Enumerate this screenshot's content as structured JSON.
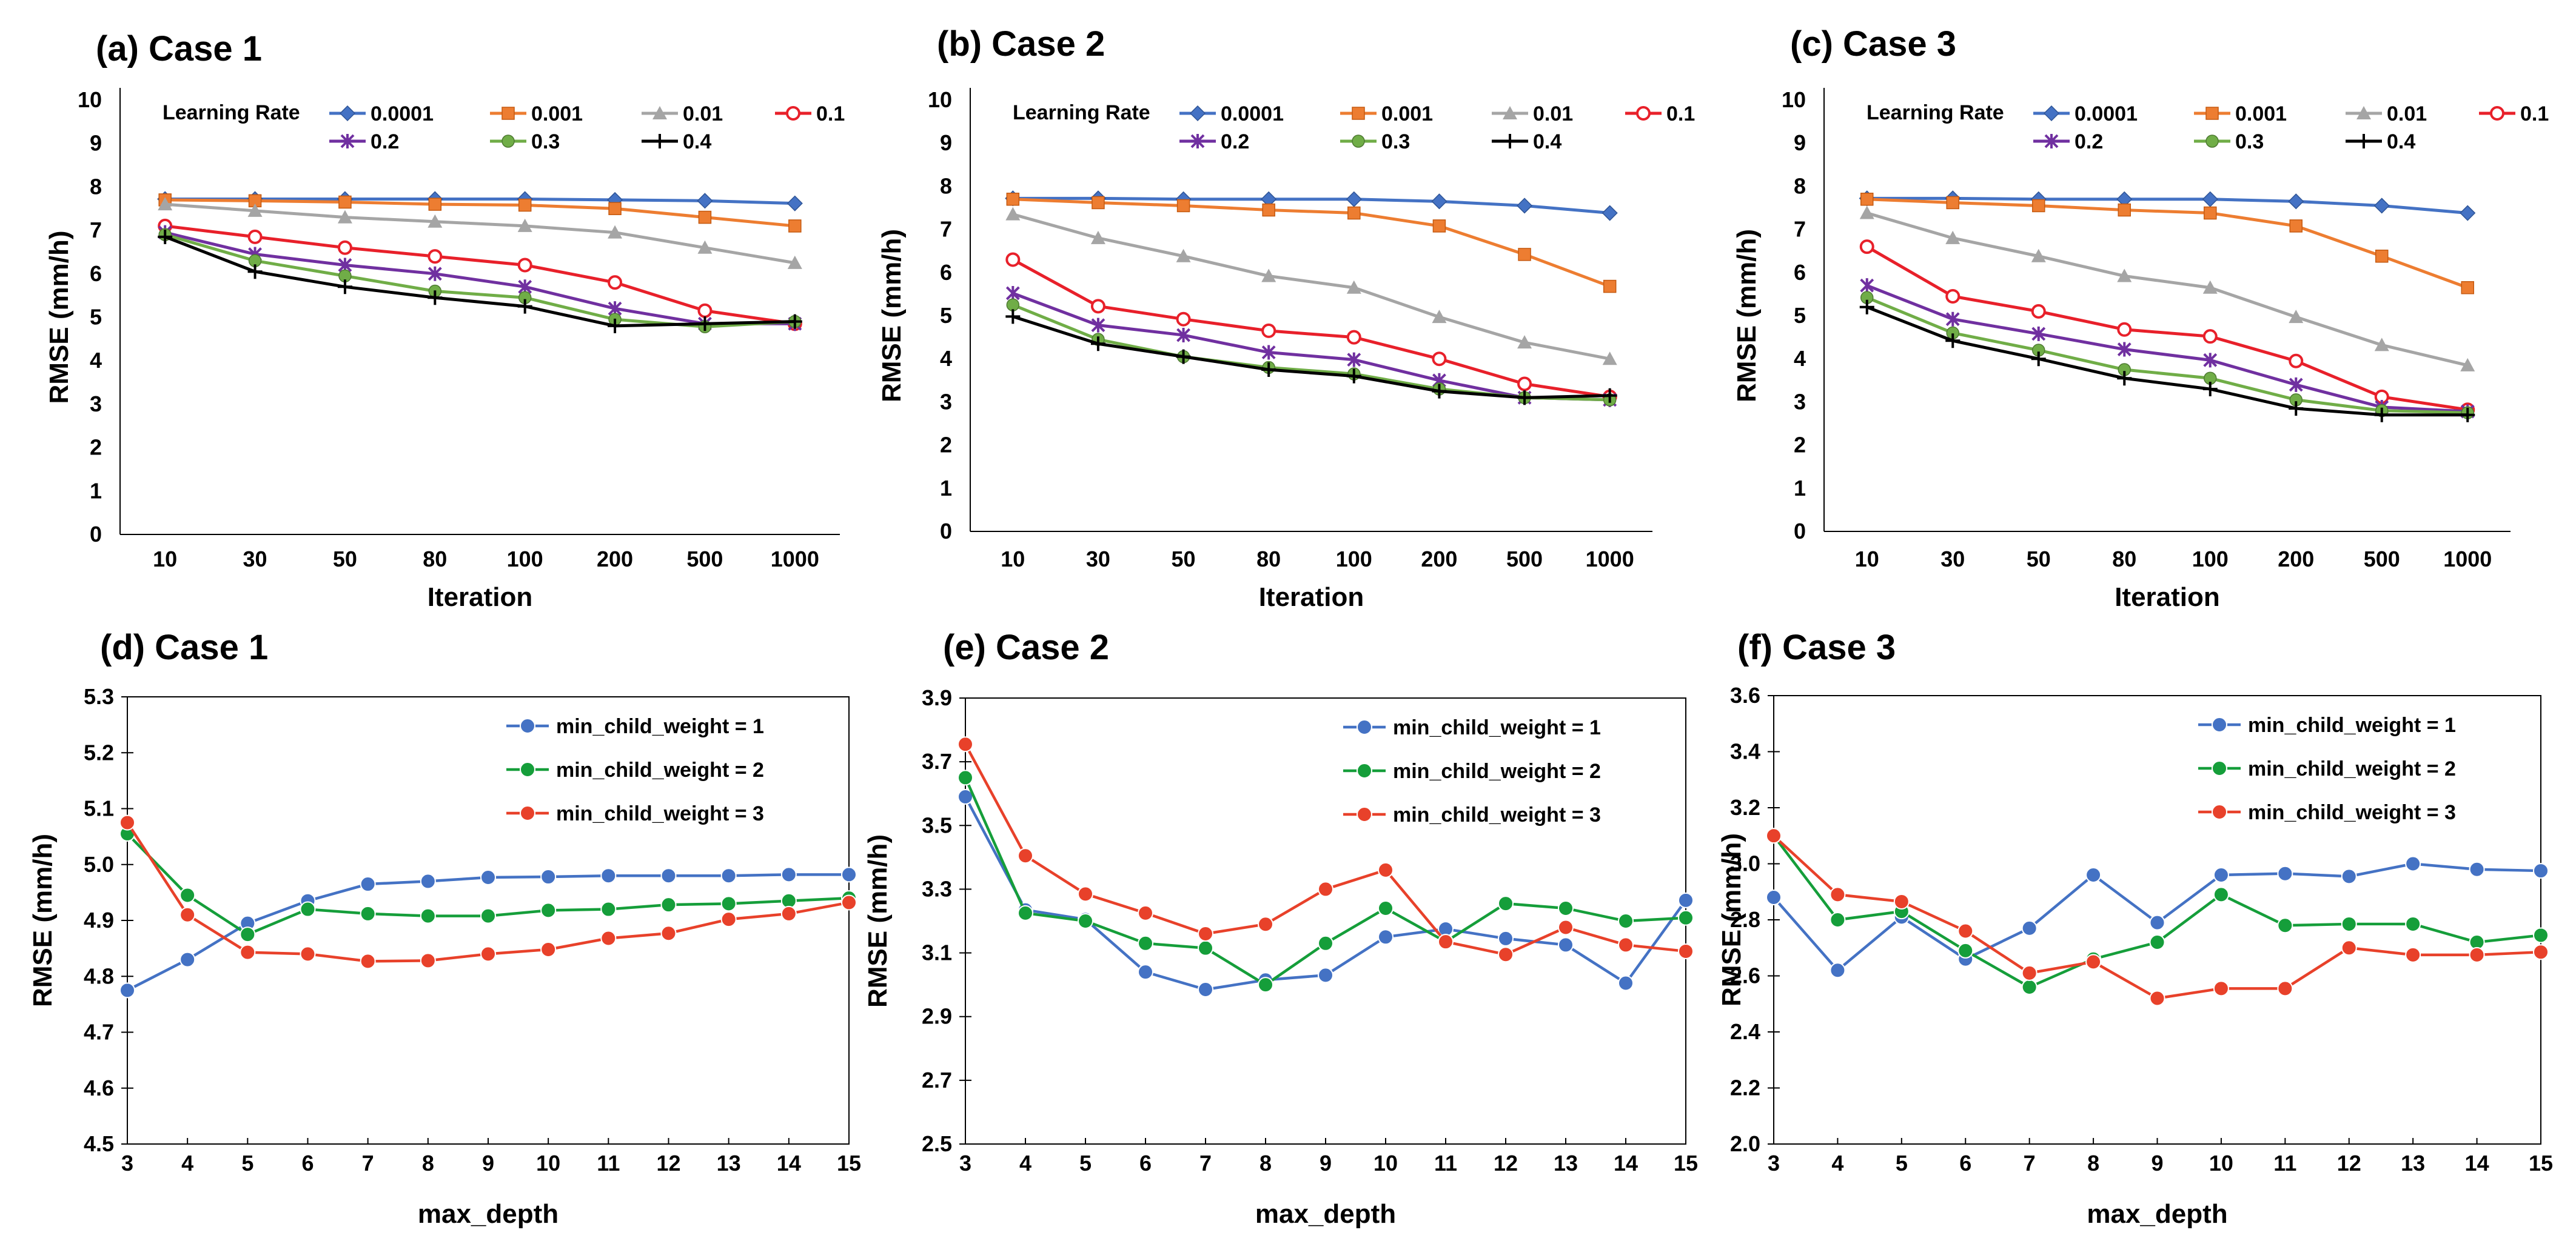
{
  "chart_data": [
    {
      "id": "a",
      "type": "line",
      "title": "(a) Case 1",
      "xlabel": "Iteration",
      "ylabel": "RMSE (mm/h)",
      "ylim": [
        0,
        10
      ],
      "yticks": [
        0,
        1,
        2,
        3,
        4,
        5,
        6,
        7,
        8,
        9,
        10
      ],
      "categories": [
        "10",
        "30",
        "50",
        "80",
        "100",
        "200",
        "500",
        "1000"
      ],
      "legend_title": "Learning Rate",
      "series": [
        {
          "name": "0.0001",
          "color": "#4472c4",
          "marker": "diamond",
          "values": [
            7.72,
            7.72,
            7.72,
            7.72,
            7.72,
            7.7,
            7.68,
            7.62
          ]
        },
        {
          "name": "0.001",
          "color": "#ed7d31",
          "marker": "square",
          "values": [
            7.7,
            7.68,
            7.65,
            7.6,
            7.58,
            7.5,
            7.3,
            7.1
          ]
        },
        {
          "name": "0.01",
          "color": "#a5a5a5",
          "marker": "triangle",
          "values": [
            7.6,
            7.45,
            7.3,
            7.2,
            7.1,
            6.95,
            6.6,
            6.25
          ]
        },
        {
          "name": "0.1",
          "color": "#e8202a",
          "marker": "circle-open",
          "values": [
            7.1,
            6.85,
            6.6,
            6.4,
            6.2,
            5.8,
            5.15,
            4.85
          ]
        },
        {
          "name": "0.2",
          "color": "#7030a0",
          "marker": "star",
          "values": [
            6.95,
            6.45,
            6.2,
            6.0,
            5.7,
            5.2,
            4.85,
            4.85
          ]
        },
        {
          "name": "0.3",
          "color": "#70ad47",
          "marker": "circle",
          "values": [
            6.9,
            6.3,
            5.95,
            5.6,
            5.45,
            4.95,
            4.78,
            4.9
          ]
        },
        {
          "name": "0.4",
          "color": "#000000",
          "marker": "plus",
          "values": [
            6.85,
            6.05,
            5.7,
            5.45,
            5.25,
            4.8,
            4.85,
            4.9
          ]
        }
      ]
    },
    {
      "id": "b",
      "type": "line",
      "title": "(b) Case 2",
      "xlabel": "Iteration",
      "ylabel": "RMSE (mm/h)",
      "ylim": [
        0,
        10
      ],
      "yticks": [
        0,
        1,
        2,
        3,
        4,
        5,
        6,
        7,
        8,
        9,
        10
      ],
      "categories": [
        "10",
        "30",
        "50",
        "80",
        "100",
        "200",
        "500",
        "1000"
      ],
      "legend_title": "Learning Rate",
      "series": [
        {
          "name": "0.0001",
          "color": "#4472c4",
          "marker": "diamond",
          "values": [
            7.72,
            7.72,
            7.7,
            7.7,
            7.7,
            7.65,
            7.55,
            7.38
          ]
        },
        {
          "name": "0.001",
          "color": "#ed7d31",
          "marker": "square",
          "values": [
            7.7,
            7.62,
            7.55,
            7.45,
            7.38,
            7.08,
            6.42,
            5.68
          ]
        },
        {
          "name": "0.01",
          "color": "#a5a5a5",
          "marker": "triangle",
          "values": [
            7.35,
            6.8,
            6.38,
            5.92,
            5.65,
            4.97,
            4.38,
            4.0
          ]
        },
        {
          "name": "0.1",
          "color": "#e8202a",
          "marker": "circle-open",
          "values": [
            6.3,
            5.22,
            4.92,
            4.65,
            4.5,
            4.0,
            3.42,
            3.12
          ]
        },
        {
          "name": "0.2",
          "color": "#7030a0",
          "marker": "star",
          "values": [
            5.52,
            4.78,
            4.55,
            4.15,
            3.98,
            3.5,
            3.1,
            3.05
          ]
        },
        {
          "name": "0.3",
          "color": "#70ad47",
          "marker": "circle",
          "values": [
            5.25,
            4.45,
            4.05,
            3.8,
            3.65,
            3.3,
            3.1,
            3.05
          ]
        },
        {
          "name": "0.4",
          "color": "#000000",
          "marker": "plus",
          "values": [
            4.98,
            4.35,
            4.05,
            3.75,
            3.6,
            3.25,
            3.1,
            3.15
          ]
        }
      ]
    },
    {
      "id": "c",
      "type": "line",
      "title": "(c) Case 3",
      "xlabel": "Iteration",
      "ylabel": "RMSE (mm/h)",
      "ylim": [
        0,
        10
      ],
      "yticks": [
        0,
        1,
        2,
        3,
        4,
        5,
        6,
        7,
        8,
        9,
        10
      ],
      "categories": [
        "10",
        "30",
        "50",
        "80",
        "100",
        "200",
        "500",
        "1000"
      ],
      "legend_title": "Learning Rate",
      "series": [
        {
          "name": "0.0001",
          "color": "#4472c4",
          "marker": "diamond",
          "values": [
            7.72,
            7.72,
            7.7,
            7.7,
            7.7,
            7.65,
            7.55,
            7.38
          ]
        },
        {
          "name": "0.001",
          "color": "#ed7d31",
          "marker": "square",
          "values": [
            7.7,
            7.62,
            7.55,
            7.45,
            7.38,
            7.08,
            6.38,
            5.65
          ]
        },
        {
          "name": "0.01",
          "color": "#a5a5a5",
          "marker": "triangle",
          "values": [
            7.38,
            6.8,
            6.38,
            5.92,
            5.65,
            4.97,
            4.32,
            3.85
          ]
        },
        {
          "name": "0.1",
          "color": "#e8202a",
          "marker": "circle-open",
          "values": [
            6.6,
            5.45,
            5.1,
            4.68,
            4.52,
            3.95,
            3.12,
            2.82
          ]
        },
        {
          "name": "0.2",
          "color": "#7030a0",
          "marker": "star",
          "values": [
            5.7,
            4.92,
            4.58,
            4.22,
            3.97,
            3.4,
            2.88,
            2.78
          ]
        },
        {
          "name": "0.3",
          "color": "#70ad47",
          "marker": "circle",
          "values": [
            5.42,
            4.6,
            4.2,
            3.75,
            3.55,
            3.05,
            2.8,
            2.75
          ]
        },
        {
          "name": "0.4",
          "color": "#000000",
          "marker": "plus",
          "values": [
            5.2,
            4.42,
            4.0,
            3.55,
            3.3,
            2.85,
            2.7,
            2.7
          ]
        }
      ]
    },
    {
      "id": "d",
      "type": "line",
      "title": "(d) Case 1",
      "xlabel": "max_depth",
      "ylabel": "RMSE (mm/h)",
      "ylim": [
        4.5,
        5.3
      ],
      "yticks": [
        4.5,
        4.6,
        4.7,
        4.8,
        4.9,
        5.0,
        5.1,
        5.2,
        5.3
      ],
      "ytick_decimals": 1,
      "categories": [
        "3",
        "4",
        "5",
        "6",
        "7",
        "8",
        "9",
        "10",
        "11",
        "12",
        "13",
        "14",
        "15"
      ],
      "series": [
        {
          "name": "min_child_weight = 1",
          "color": "#4472c4",
          "marker": "dot",
          "values": [
            4.775,
            4.83,
            4.895,
            4.935,
            4.965,
            4.97,
            4.977,
            4.978,
            4.98,
            4.98,
            4.98,
            4.982,
            4.982
          ]
        },
        {
          "name": "min_child_weight = 2",
          "color": "#159e3a",
          "marker": "dot",
          "values": [
            5.055,
            4.945,
            4.875,
            4.92,
            4.912,
            4.908,
            4.908,
            4.918,
            4.92,
            4.928,
            4.93,
            4.935,
            4.94
          ]
        },
        {
          "name": "min_child_weight = 3",
          "color": "#e8412a",
          "marker": "dot",
          "values": [
            5.075,
            4.91,
            4.843,
            4.84,
            4.827,
            4.828,
            4.84,
            4.848,
            4.868,
            4.877,
            4.902,
            4.912,
            4.932
          ]
        }
      ]
    },
    {
      "id": "e",
      "type": "line",
      "title": "(e) Case 2",
      "xlabel": "max_depth",
      "ylabel": "RMSE (mm/h)",
      "ylim": [
        2.5,
        3.9
      ],
      "yticks": [
        2.5,
        2.7,
        2.9,
        3.1,
        3.3,
        3.5,
        3.7,
        3.9
      ],
      "ytick_decimals": 1,
      "categories": [
        "3",
        "4",
        "5",
        "6",
        "7",
        "8",
        "9",
        "10",
        "11",
        "12",
        "13",
        "14",
        "15"
      ],
      "series": [
        {
          "name": "min_child_weight = 1",
          "color": "#4472c4",
          "marker": "dot",
          "values": [
            3.59,
            3.235,
            3.205,
            3.04,
            2.985,
            3.015,
            3.03,
            3.15,
            3.175,
            3.145,
            3.125,
            3.005,
            3.265
          ]
        },
        {
          "name": "min_child_weight = 2",
          "color": "#159e3a",
          "marker": "dot",
          "values": [
            3.65,
            3.225,
            3.2,
            3.13,
            3.115,
            3.0,
            3.13,
            3.24,
            3.135,
            3.255,
            3.24,
            3.2,
            3.21
          ]
        },
        {
          "name": "min_child_weight = 3",
          "color": "#e8412a",
          "marker": "dot",
          "values": [
            3.755,
            3.405,
            3.285,
            3.225,
            3.16,
            3.19,
            3.3,
            3.36,
            3.135,
            3.095,
            3.18,
            3.125,
            3.105
          ]
        }
      ]
    },
    {
      "id": "f",
      "type": "line",
      "title": "(f) Case 3",
      "xlabel": "max_depth",
      "ylabel": "RMSE (mm/h)",
      "ylim": [
        2.0,
        3.6
      ],
      "yticks": [
        2.0,
        2.2,
        2.4,
        2.6,
        2.8,
        3.0,
        3.2,
        3.4,
        3.6
      ],
      "ytick_decimals": 1,
      "categories": [
        "3",
        "4",
        "5",
        "6",
        "7",
        "8",
        "9",
        "10",
        "11",
        "12",
        "13",
        "14",
        "15"
      ],
      "series": [
        {
          "name": "min_child_weight = 1",
          "color": "#4472c4",
          "marker": "dot",
          "values": [
            2.88,
            2.62,
            2.81,
            2.66,
            2.77,
            2.96,
            2.79,
            2.96,
            2.965,
            2.955,
            3.0,
            2.98,
            2.975
          ]
        },
        {
          "name": "min_child_weight = 2",
          "color": "#159e3a",
          "marker": "dot",
          "values": [
            3.1,
            2.8,
            2.83,
            2.69,
            2.56,
            2.66,
            2.72,
            2.89,
            2.78,
            2.785,
            2.785,
            2.72,
            2.745
          ]
        },
        {
          "name": "min_child_weight = 3",
          "color": "#e8412a",
          "marker": "dot",
          "values": [
            3.1,
            2.89,
            2.865,
            2.76,
            2.61,
            2.65,
            2.52,
            2.555,
            2.555,
            2.7,
            2.675,
            2.675,
            2.685
          ]
        }
      ]
    }
  ]
}
